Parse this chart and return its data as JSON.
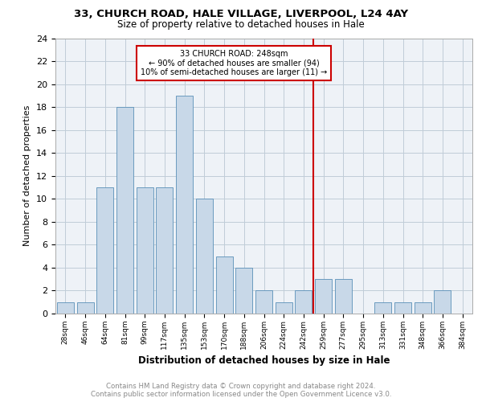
{
  "title1": "33, CHURCH ROAD, HALE VILLAGE, LIVERPOOL, L24 4AY",
  "title2": "Size of property relative to detached houses in Hale",
  "xlabel": "Distribution of detached houses by size in Hale",
  "ylabel": "Number of detached properties",
  "categories": [
    "28sqm",
    "46sqm",
    "64sqm",
    "81sqm",
    "99sqm",
    "117sqm",
    "135sqm",
    "153sqm",
    "170sqm",
    "188sqm",
    "206sqm",
    "224sqm",
    "242sqm",
    "259sqm",
    "277sqm",
    "295sqm",
    "313sqm",
    "331sqm",
    "348sqm",
    "366sqm",
    "384sqm"
  ],
  "values": [
    1,
    1,
    11,
    18,
    11,
    11,
    19,
    10,
    5,
    4,
    2,
    1,
    2,
    3,
    3,
    0,
    1,
    1,
    1,
    2,
    0
  ],
  "bar_color": "#c8d8e8",
  "bar_edge_color": "#5a90b8",
  "grid_color": "#c0ccd8",
  "vline_x": 12.5,
  "vline_color": "#cc0000",
  "annotation_title": "33 CHURCH ROAD: 248sqm",
  "annotation_line1": "← 90% of detached houses are smaller (94)",
  "annotation_line2": "10% of semi-detached houses are larger (11) →",
  "annotation_box_color": "#cc0000",
  "ylim": [
    0,
    24
  ],
  "yticks": [
    0,
    2,
    4,
    6,
    8,
    10,
    12,
    14,
    16,
    18,
    20,
    22,
    24
  ],
  "footer1": "Contains HM Land Registry data © Crown copyright and database right 2024.",
  "footer2": "Contains public sector information licensed under the Open Government Licence v3.0.",
  "bg_color": "#eef2f7"
}
